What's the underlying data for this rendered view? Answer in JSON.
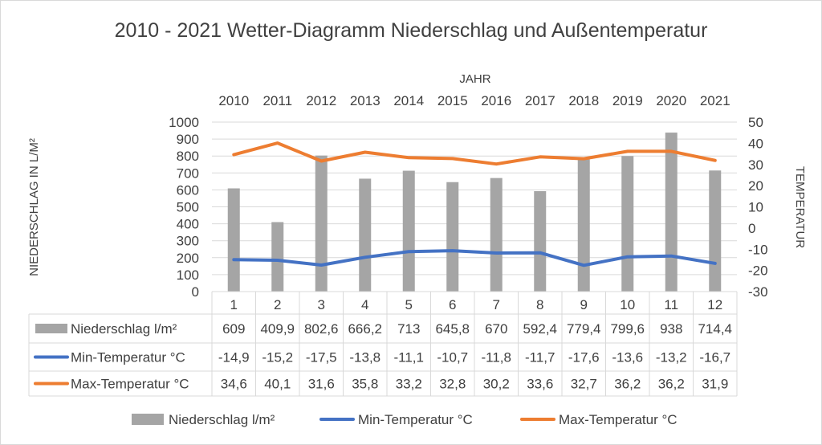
{
  "chart_data": {
    "type": "bar",
    "title": "2010 - 2021 Wetter-Diagramm Niederschlag und Außentemperatur",
    "top_axis_label": "JAHR",
    "years": [
      "2010",
      "2011",
      "2012",
      "2013",
      "2014",
      "2015",
      "2016",
      "2017",
      "2018",
      "2019",
      "2020",
      "2021"
    ],
    "categories": [
      "1",
      "2",
      "3",
      "4",
      "5",
      "6",
      "7",
      "8",
      "9",
      "10",
      "11",
      "12"
    ],
    "ylabel": "NIEDERSCHLAG IN L/M²",
    "y2label": "TEMPERATUR",
    "ylim": [
      0,
      1000
    ],
    "y2lim": [
      -30,
      50
    ],
    "yticks": [
      "0",
      "100",
      "200",
      "300",
      "400",
      "500",
      "600",
      "700",
      "800",
      "900",
      "1000"
    ],
    "y2ticks": [
      "-30",
      "-20",
      "-10",
      "0",
      "10",
      "20",
      "30",
      "40",
      "50"
    ],
    "grid": true,
    "legend_position": "bottom",
    "series": [
      {
        "name": "Niederschlag  l/m²",
        "type": "bar",
        "axis": "left",
        "color": "#a5a5a5",
        "values": [
          609,
          409.9,
          802.6,
          666.2,
          713,
          645.8,
          670,
          592.4,
          779.4,
          799.6,
          938,
          714.4
        ],
        "labels": [
          "609",
          "409,9",
          "802,6",
          "666,2",
          "713",
          "645,8",
          "670",
          "592,4",
          "779,4",
          "799,6",
          "938",
          "714,4"
        ]
      },
      {
        "name": "Min-Temperatur  °C",
        "type": "line",
        "axis": "right",
        "color": "#4472c4",
        "values": [
          -14.9,
          -15.2,
          -17.5,
          -13.8,
          -11.1,
          -10.7,
          -11.8,
          -11.7,
          -17.6,
          -13.6,
          -13.2,
          -16.7
        ],
        "labels": [
          "-14,9",
          "-15,2",
          "-17,5",
          "-13,8",
          "-11,1",
          "-10,7",
          "-11,8",
          "-11,7",
          "-17,6",
          "-13,6",
          "-13,2",
          "-16,7"
        ]
      },
      {
        "name": "Max-Temperatur  °C",
        "type": "line",
        "axis": "right",
        "color": "#ed7d31",
        "values": [
          34.6,
          40.1,
          31.6,
          35.8,
          33.2,
          32.8,
          30.2,
          33.6,
          32.7,
          36.2,
          36.2,
          31.9
        ],
        "labels": [
          "34,6",
          "40,1",
          "31,6",
          "35,8",
          "33,2",
          "32,8",
          "30,2",
          "33,6",
          "32,7",
          "36,2",
          "36,2",
          "31,9"
        ]
      }
    ]
  }
}
